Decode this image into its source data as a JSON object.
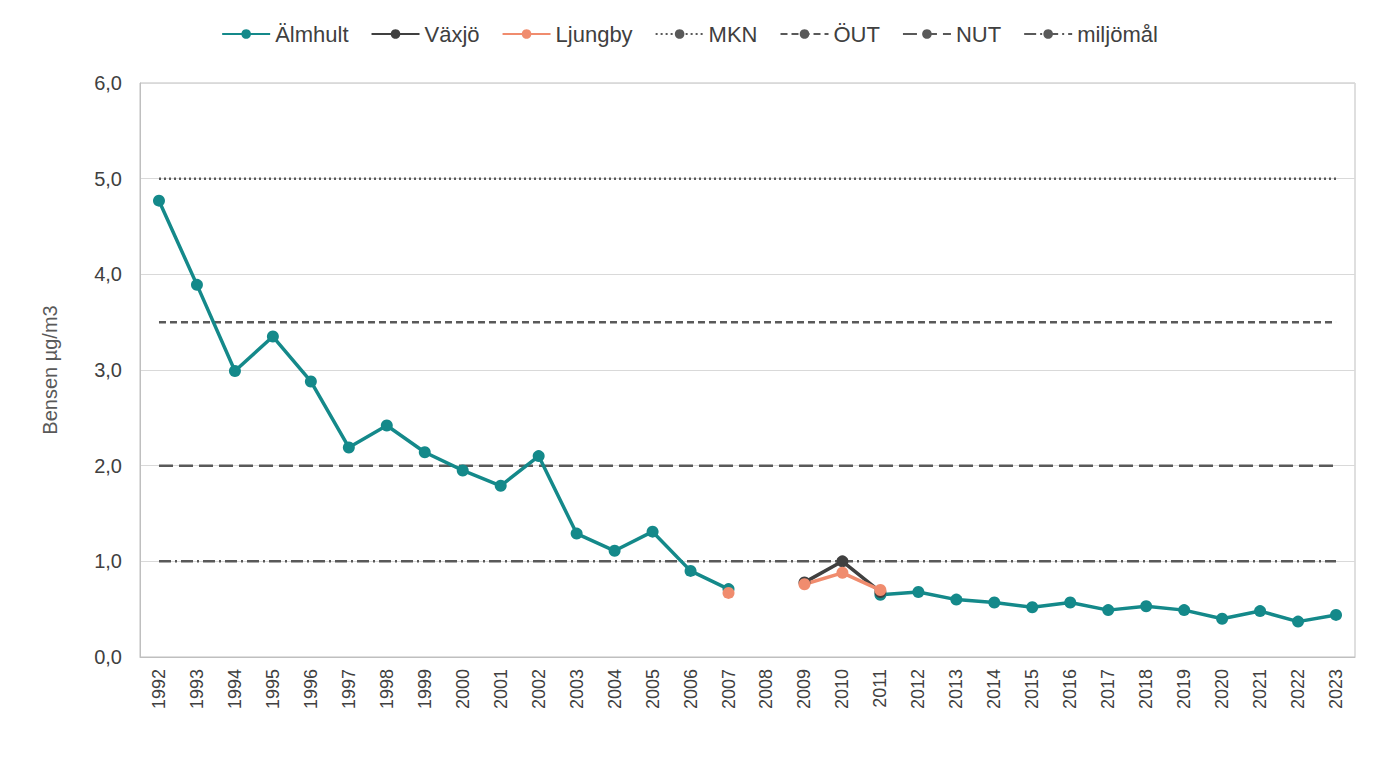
{
  "chart_data": {
    "type": "line",
    "y_label": "Bensen µg/m3",
    "categories": [
      "1992",
      "1993",
      "1994",
      "1995",
      "1996",
      "1997",
      "1998",
      "1999",
      "2000",
      "2001",
      "2002",
      "2003",
      "2004",
      "2005",
      "2006",
      "2007",
      "2008",
      "2009",
      "2010",
      "2011",
      "2012",
      "2013",
      "2014",
      "2015",
      "2016",
      "2017",
      "2018",
      "2019",
      "2020",
      "2021",
      "2022",
      "2023"
    ],
    "series": [
      {
        "name": "Älmhult",
        "color": "#14898a",
        "marker": "circle",
        "line_style": "solid",
        "values": [
          4.77,
          3.89,
          2.99,
          3.35,
          2.88,
          2.19,
          2.42,
          2.14,
          1.95,
          1.79,
          2.1,
          1.29,
          1.11,
          1.31,
          0.9,
          0.71,
          null,
          null,
          null,
          0.65,
          0.68,
          0.6,
          0.57,
          0.52,
          0.57,
          0.49,
          0.53,
          0.49,
          0.4,
          0.48,
          0.37,
          0.44
        ]
      },
      {
        "name": "Växjö",
        "color": "#404040",
        "marker": "circle",
        "line_style": "solid",
        "values": [
          null,
          null,
          null,
          null,
          null,
          null,
          null,
          null,
          null,
          null,
          null,
          null,
          null,
          null,
          null,
          null,
          null,
          0.78,
          1.0,
          0.68,
          null,
          null,
          null,
          null,
          null,
          null,
          null,
          null,
          null,
          null,
          null,
          null
        ]
      },
      {
        "name": "Ljungby",
        "color": "#f08c6e",
        "marker": "circle",
        "line_style": "solid",
        "values": [
          null,
          null,
          null,
          null,
          null,
          null,
          null,
          null,
          null,
          null,
          null,
          null,
          null,
          null,
          null,
          0.67,
          null,
          0.76,
          0.88,
          0.7,
          null,
          null,
          null,
          null,
          null,
          null,
          null,
          null,
          null,
          null,
          null,
          null
        ]
      },
      {
        "name": "MKN",
        "color": "#595959",
        "marker": "none",
        "line_style": "dotted",
        "values": [
          5,
          5,
          5,
          5,
          5,
          5,
          5,
          5,
          5,
          5,
          5,
          5,
          5,
          5,
          5,
          5,
          5,
          5,
          5,
          5,
          5,
          5,
          5,
          5,
          5,
          5,
          5,
          5,
          5,
          5,
          5,
          5
        ]
      },
      {
        "name": "ÖUT",
        "color": "#595959",
        "marker": "none",
        "line_style": "dashed",
        "values": [
          3.5,
          3.5,
          3.5,
          3.5,
          3.5,
          3.5,
          3.5,
          3.5,
          3.5,
          3.5,
          3.5,
          3.5,
          3.5,
          3.5,
          3.5,
          3.5,
          3.5,
          3.5,
          3.5,
          3.5,
          3.5,
          3.5,
          3.5,
          3.5,
          3.5,
          3.5,
          3.5,
          3.5,
          3.5,
          3.5,
          3.5,
          3.5
        ]
      },
      {
        "name": "NUT",
        "color": "#595959",
        "marker": "none",
        "line_style": "longdash",
        "values": [
          2,
          2,
          2,
          2,
          2,
          2,
          2,
          2,
          2,
          2,
          2,
          2,
          2,
          2,
          2,
          2,
          2,
          2,
          2,
          2,
          2,
          2,
          2,
          2,
          2,
          2,
          2,
          2,
          2,
          2,
          2,
          2
        ]
      },
      {
        "name": "miljömål",
        "color": "#595959",
        "marker": "none",
        "line_style": "dashdot",
        "values": [
          1,
          1,
          1,
          1,
          1,
          1,
          1,
          1,
          1,
          1,
          1,
          1,
          1,
          1,
          1,
          1,
          1,
          1,
          1,
          1,
          1,
          1,
          1,
          1,
          1,
          1,
          1,
          1,
          1,
          1,
          1,
          1
        ]
      }
    ],
    "ylim": [
      0,
      6
    ],
    "yticks": [
      {
        "value": 0,
        "label": "0,0"
      },
      {
        "value": 1,
        "label": "1,0"
      },
      {
        "value": 2,
        "label": "2,0"
      },
      {
        "value": 3,
        "label": "3,0"
      },
      {
        "value": 4,
        "label": "4,0"
      },
      {
        "value": 5,
        "label": "5,0"
      },
      {
        "value": 6,
        "label": "6,0"
      }
    ],
    "grid": true,
    "legend": "top"
  }
}
